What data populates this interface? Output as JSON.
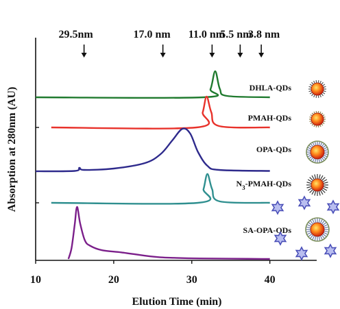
{
  "chart_data": {
    "type": "line",
    "xlabel": "Elution Time (min)",
    "ylabel": "Absorption at 280nm (AU)",
    "xlim": [
      10,
      46
    ],
    "x_ticks": [
      10,
      20,
      30,
      40
    ],
    "grid": false,
    "size_markers": [
      {
        "label": "29.5nm",
        "x": 16.2
      },
      {
        "label": "17.0 nm",
        "x": 26.3
      },
      {
        "label": "11.0 nm",
        "x": 32.6
      },
      {
        "label": "5.5 nm",
        "x": 36.2
      },
      {
        "label": "3.8 nm",
        "x": 38.9
      }
    ],
    "series": [
      {
        "name": "DHLA-QDs",
        "color": "#1f7a2e",
        "baseline": 0.0,
        "icon": "qd-dhla-icon",
        "points": [
          [
            10,
            0
          ],
          [
            31.5,
            0
          ],
          [
            32.4,
            0.12
          ],
          [
            33.0,
            0.38
          ],
          [
            33.6,
            0.12
          ],
          [
            34.5,
            0.02
          ],
          [
            40,
            0
          ]
        ]
      },
      {
        "name": "PMAH-QDs",
        "color": "#e8322b",
        "baseline": 0.0,
        "icon": "qd-pmah-icon",
        "points": [
          [
            12,
            0
          ],
          [
            30.6,
            0
          ],
          [
            31.4,
            0.22
          ],
          [
            31.9,
            0.45
          ],
          [
            32.5,
            0.22
          ],
          [
            33.5,
            0.02
          ],
          [
            40,
            0
          ]
        ]
      },
      {
        "name": "OPA-QDs",
        "color": "#2e2a8c",
        "baseline": 0.0,
        "icon": "qd-opa-icon",
        "points": [
          [
            10,
            0
          ],
          [
            15,
            0.005
          ],
          [
            15.6,
            0.05
          ],
          [
            16.2,
            0.02
          ],
          [
            20,
            0.04
          ],
          [
            24,
            0.12
          ],
          [
            26,
            0.25
          ],
          [
            27.5,
            0.45
          ],
          [
            28.8,
            0.62
          ],
          [
            29.8,
            0.55
          ],
          [
            30.8,
            0.28
          ],
          [
            32,
            0.08
          ],
          [
            33.5,
            0.02
          ],
          [
            40,
            0.005
          ]
        ]
      },
      {
        "name": "N3-PMAH-QDs",
        "name_sub": "3",
        "color": "#2f8f8f",
        "baseline": 0.0,
        "icon": "qd-n3-pmah-icon",
        "points": [
          [
            12,
            0
          ],
          [
            30.8,
            0
          ],
          [
            31.5,
            0.2
          ],
          [
            32.0,
            0.42
          ],
          [
            32.6,
            0.2
          ],
          [
            33.6,
            0.02
          ],
          [
            40,
            0
          ]
        ]
      },
      {
        "name": "SA-OPA-QDs",
        "color": "#7b1f8a",
        "baseline": 0.0,
        "icon": "qd-sa-opa-icon",
        "points": [
          [
            14.2,
            0
          ],
          [
            14.6,
            0.2
          ],
          [
            15.0,
            0.62
          ],
          [
            15.3,
            0.95
          ],
          [
            15.7,
            0.65
          ],
          [
            16.3,
            0.34
          ],
          [
            17,
            0.24
          ],
          [
            18.5,
            0.16
          ],
          [
            21,
            0.12
          ],
          [
            24,
            0.06
          ],
          [
            26,
            0.03
          ],
          [
            28,
            0.02
          ],
          [
            31,
            0.01
          ],
          [
            35,
            0.005
          ],
          [
            40,
            0
          ]
        ]
      }
    ]
  }
}
